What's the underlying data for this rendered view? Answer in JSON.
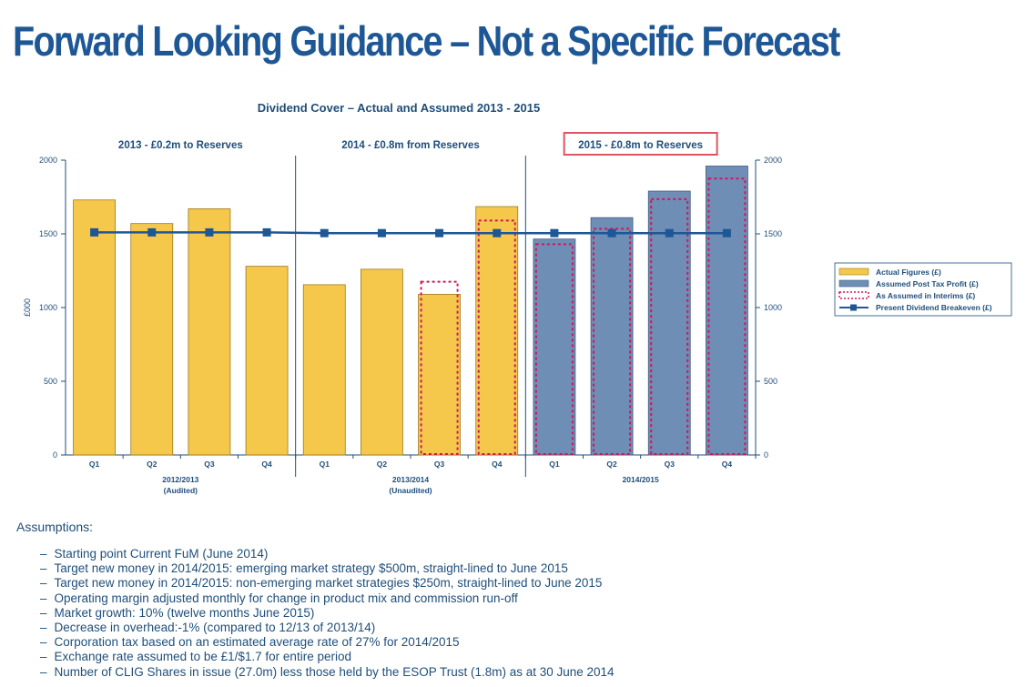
{
  "page": {
    "title": "Forward Looking Guidance – Not a Specific Forecast"
  },
  "chart_data": {
    "type": "bar",
    "title": "Dividend Cover – Actual and Assumed 2013 - 2015",
    "ylabel": "£000",
    "ylim": [
      0,
      2000
    ],
    "yticks": [
      0,
      500,
      1000,
      1500,
      2000
    ],
    "categories": [
      "Q1",
      "Q2",
      "Q3",
      "Q4",
      "Q1",
      "Q2",
      "Q3",
      "Q4",
      "Q1",
      "Q2",
      "Q3",
      "Q4"
    ],
    "groups": [
      {
        "label": "2012/2013",
        "sublabel": "(Audited)",
        "header": "2013 - £0.2m to Reserves",
        "highlighted": false
      },
      {
        "label": "2013/2014",
        "sublabel": "(Unaudited)",
        "header": "2014 - £0.8m from Reserves",
        "highlighted": false
      },
      {
        "label": "2014/2015",
        "sublabel": "",
        "header": "2015 - £0.8m to Reserves",
        "highlighted": true
      }
    ],
    "series": [
      {
        "name": "Actual Figures (£)",
        "type": "bar",
        "color": "#f5c84c",
        "values": [
          1730,
          1570,
          1670,
          1280,
          1155,
          1260,
          1090,
          1685,
          null,
          null,
          null,
          null
        ]
      },
      {
        "name": "Assumed Post Tax Profit (£)",
        "type": "bar",
        "color": "#6f8eb5",
        "values": [
          null,
          null,
          null,
          null,
          null,
          null,
          null,
          null,
          1465,
          1610,
          1790,
          1960
        ]
      },
      {
        "name": "As Assumed in Interims (£)",
        "type": "dashed-bar",
        "color": "#d4145a",
        "values": [
          null,
          null,
          null,
          null,
          null,
          null,
          1175,
          1590,
          1430,
          1535,
          1735,
          1875
        ]
      },
      {
        "name": "Present Dividend Breakeven (£)",
        "type": "line",
        "color": "#1d5796",
        "values": [
          1510,
          1510,
          1510,
          1510,
          1505,
          1505,
          1505,
          1505,
          1505,
          1505,
          1505,
          1505
        ]
      }
    ],
    "legend_position": "right",
    "grid": false
  },
  "assumptions": {
    "heading": "Assumptions:",
    "items": [
      "Starting point Current FuM (June 2014)",
      "Target new money in 2014/2015: emerging market strategy $500m, straight-lined to June 2015",
      "Target new money in 2014/2015: non-emerging market strategies $250m, straight-lined to June 2015",
      "Operating margin adjusted monthly for change in product mix and commission run-off",
      "Market growth: 10% (twelve months June 2015)",
      "Decrease in overhead:-1% (compared to 12/13 of 2013/14)",
      "Corporation tax based on an estimated average rate of 27% for 2014/2015",
      "Exchange rate assumed to be £1/$1.7 for entire period",
      "Number of CLIG Shares in issue (27.0m) less those held by the ESOP Trust (1.8m) as at 30 June 2014"
    ]
  }
}
